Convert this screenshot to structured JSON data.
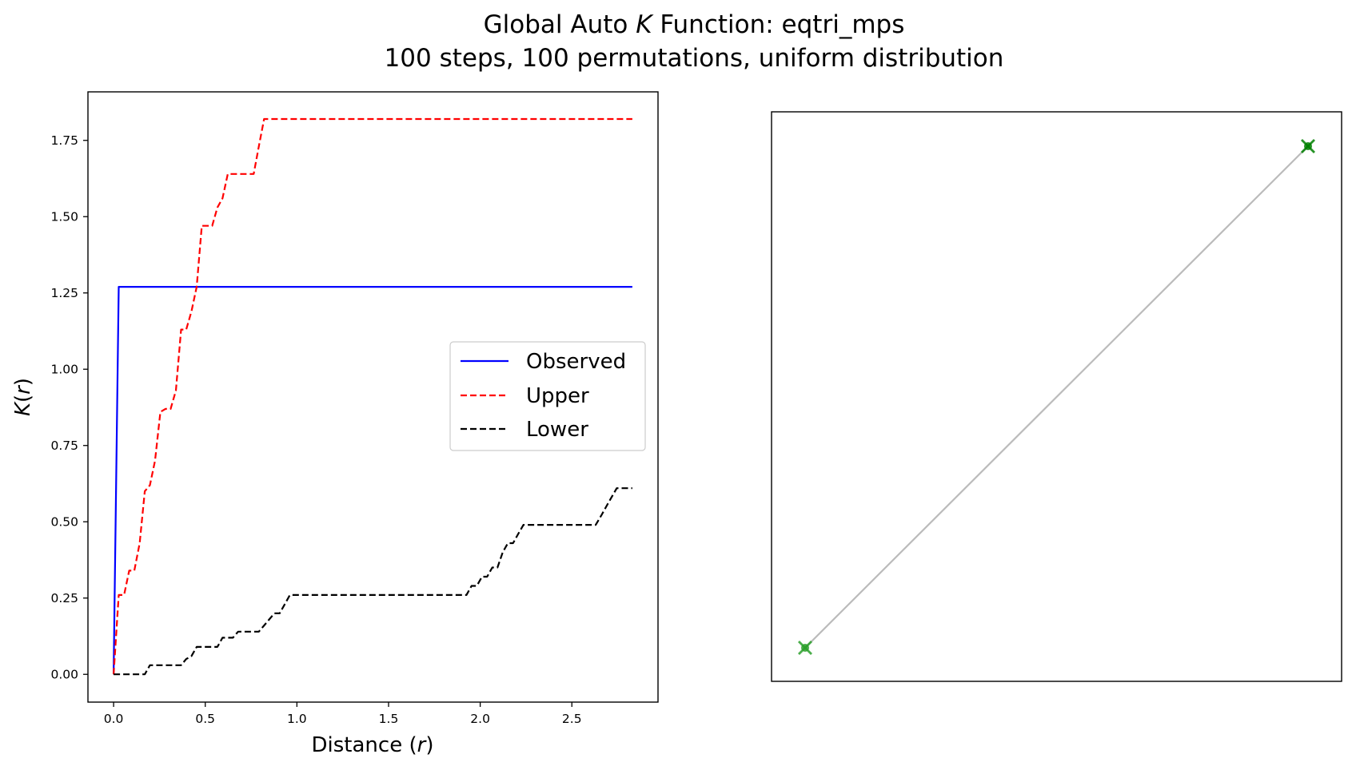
{
  "figure": {
    "title_prefix": "Global Auto ",
    "title_italic": "K",
    "title_suffix": " Function: eqtri_mps",
    "subtitle": "100 steps, 100 permutations, uniform distribution"
  },
  "chart_data": [
    {
      "type": "line",
      "xlabel_prefix": "Distance (",
      "xlabel_italic": "r",
      "xlabel_suffix": ")",
      "ylabel_italic_k": "K",
      "ylabel_open": "(",
      "ylabel_italic_r": "r",
      "ylabel_close": ")",
      "xlim": [
        -0.14,
        2.97
      ],
      "ylim": [
        -0.091,
        1.909
      ],
      "xticks": [
        0.0,
        0.5,
        1.0,
        1.5,
        2.0,
        2.5
      ],
      "xtick_labels": [
        "0.0",
        "0.5",
        "1.0",
        "1.5",
        "2.0",
        "2.5"
      ],
      "yticks": [
        0.0,
        0.25,
        0.5,
        0.75,
        1.0,
        1.25,
        1.5,
        1.75
      ],
      "ytick_labels": [
        "0.00",
        "0.25",
        "0.50",
        "0.75",
        "1.00",
        "1.25",
        "1.50",
        "1.75"
      ],
      "legend": {
        "placement": "center-right",
        "entries": [
          "Observed",
          "Upper",
          "Lower"
        ]
      },
      "grid": false,
      "series": [
        {
          "name": "Observed",
          "color": "#0000ff",
          "style": "solid",
          "x": [
            0.0,
            0.028,
            2.83
          ],
          "y": [
            0.0,
            1.27,
            1.27
          ]
        },
        {
          "name": "Upper",
          "color": "#ff0000",
          "style": "dashed",
          "x": [
            0.0,
            0.028,
            0.057,
            0.085,
            0.113,
            0.142,
            0.17,
            0.198,
            0.226,
            0.255,
            0.283,
            0.311,
            0.34,
            0.368,
            0.396,
            0.425,
            0.453,
            0.481,
            0.509,
            0.538,
            0.566,
            0.594,
            0.623,
            0.651,
            0.679,
            0.707,
            0.736,
            0.764,
            0.792,
            0.821,
            2.83
          ],
          "y": [
            0.0,
            0.26,
            0.26,
            0.34,
            0.34,
            0.43,
            0.6,
            0.62,
            0.7,
            0.86,
            0.87,
            0.87,
            0.93,
            1.13,
            1.13,
            1.19,
            1.27,
            1.47,
            1.47,
            1.47,
            1.53,
            1.56,
            1.64,
            1.64,
            1.64,
            1.64,
            1.64,
            1.64,
            1.73,
            1.82,
            1.82
          ]
        },
        {
          "name": "Lower",
          "color": "#000000",
          "style": "dashed",
          "x": [
            0.0,
            0.057,
            0.113,
            0.17,
            0.198,
            0.226,
            0.255,
            0.283,
            0.311,
            0.34,
            0.368,
            0.396,
            0.425,
            0.453,
            0.481,
            0.509,
            0.538,
            0.566,
            0.594,
            0.623,
            0.651,
            0.679,
            0.707,
            0.736,
            0.764,
            0.792,
            0.821,
            0.849,
            0.877,
            0.906,
            0.934,
            0.962,
            0.99,
            1.019,
            1.047,
            1.9,
            1.925,
            1.953,
            1.981,
            2.01,
            2.038,
            2.066,
            2.094,
            2.123,
            2.151,
            2.179,
            2.207,
            2.236,
            2.264,
            2.292,
            2.32,
            2.349,
            2.377,
            2.405,
            2.63,
            2.66,
            2.688,
            2.716,
            2.745,
            2.773,
            2.83
          ],
          "y": [
            0.0,
            0.0,
            0.0,
            0.0,
            0.03,
            0.03,
            0.03,
            0.03,
            0.03,
            0.03,
            0.03,
            0.05,
            0.06,
            0.09,
            0.09,
            0.09,
            0.09,
            0.09,
            0.12,
            0.12,
            0.12,
            0.14,
            0.14,
            0.14,
            0.14,
            0.14,
            0.16,
            0.18,
            0.2,
            0.2,
            0.23,
            0.26,
            0.26,
            0.26,
            0.26,
            0.26,
            0.26,
            0.29,
            0.29,
            0.32,
            0.32,
            0.35,
            0.35,
            0.4,
            0.43,
            0.43,
            0.46,
            0.49,
            0.49,
            0.49,
            0.49,
            0.49,
            0.49,
            0.49,
            0.49,
            0.52,
            0.55,
            0.58,
            0.61,
            0.61,
            0.61
          ]
        }
      ]
    },
    {
      "type": "scatter",
      "grid": false,
      "ticks": "none",
      "segment": {
        "color": "#bbbbbb",
        "from": [
          0.0,
          0.0
        ],
        "to": [
          1.0,
          1.732
        ]
      },
      "points": [
        {
          "x": 0.0,
          "y": 0.0,
          "marker": "x",
          "color": "#2ca02c"
        },
        {
          "x": 1.0,
          "y": 1.732,
          "marker": "x",
          "color": "#008000"
        }
      ]
    }
  ]
}
